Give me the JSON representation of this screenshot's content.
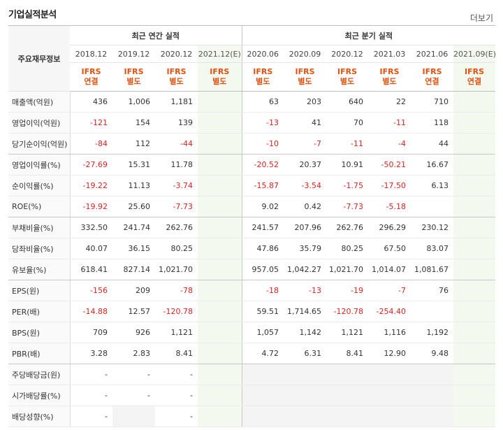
{
  "title": "기업실적분석",
  "more_label": "더보기",
  "header": {
    "label_col": "주요재무정보",
    "annual_title": "최근 연간 실적",
    "quarter_title": "최근 분기 실적",
    "periods": [
      "2018.12",
      "2019.12",
      "2020.12",
      "2021.12(E)",
      "2020.06",
      "2020.09",
      "2020.12",
      "2021.03",
      "2021.06",
      "2021.09(E)"
    ],
    "ifrs_line1": [
      "IFRS",
      "IFRS",
      "IFRS",
      "IFRS",
      "IFRS",
      "IFRS",
      "IFRS",
      "IFRS",
      "IFRS",
      "IFRS"
    ],
    "ifrs_line2": [
      "연결",
      "별도",
      "별도",
      "별도",
      "별도",
      "별도",
      "별도",
      "별도",
      "연결",
      "연결"
    ]
  },
  "rows": [
    {
      "label": "매출액(억원)",
      "values": [
        "436",
        "1,006",
        "1,181",
        "",
        "63",
        "203",
        "640",
        "22",
        "710",
        ""
      ]
    },
    {
      "label": "영업이익(억원)",
      "values": [
        "-121",
        "154",
        "139",
        "",
        "-13",
        "41",
        "70",
        "-11",
        "118",
        ""
      ]
    },
    {
      "label": "당기순이익(억원)",
      "values": [
        "-84",
        "112",
        "-44",
        "",
        "-10",
        "-7",
        "-11",
        "-4",
        "44",
        ""
      ]
    },
    {
      "label": "영업이익률(%)",
      "values": [
        "-27.69",
        "15.31",
        "11.78",
        "",
        "-20.52",
        "20.37",
        "10.91",
        "-50.21",
        "16.67",
        ""
      ]
    },
    {
      "label": "순이익률(%)",
      "values": [
        "-19.22",
        "11.13",
        "-3.74",
        "",
        "-15.87",
        "-3.54",
        "-1.75",
        "-17.50",
        "6.13",
        ""
      ]
    },
    {
      "label": "ROE(%)",
      "values": [
        "-19.92",
        "25.60",
        "-7.73",
        "",
        "9.02",
        "0.42",
        "-7.73",
        "-5.18",
        "",
        ""
      ]
    },
    {
      "label": "부채비율(%)",
      "values": [
        "332.50",
        "241.74",
        "262.76",
        "",
        "241.57",
        "207.96",
        "262.76",
        "296.29",
        "230.12",
        ""
      ]
    },
    {
      "label": "당좌비율(%)",
      "values": [
        "40.07",
        "36.15",
        "80.25",
        "",
        "47.86",
        "35.79",
        "80.25",
        "67.50",
        "83.07",
        ""
      ]
    },
    {
      "label": "유보율(%)",
      "values": [
        "618.41",
        "827.14",
        "1,021.70",
        "",
        "957.05",
        "1,042.27",
        "1,021.70",
        "1,014.07",
        "1,081.67",
        ""
      ]
    },
    {
      "label": "EPS(원)",
      "values": [
        "-156",
        "209",
        "-78",
        "",
        "-18",
        "-13",
        "-19",
        "-7",
        "76",
        ""
      ]
    },
    {
      "label": "PER(배)",
      "values": [
        "-14.88",
        "12.57",
        "-120.78",
        "",
        "59.51",
        "1,714.65",
        "-120.78",
        "-254.40",
        "",
        ""
      ]
    },
    {
      "label": "BPS(원)",
      "values": [
        "709",
        "926",
        "1,121",
        "",
        "1,057",
        "1,142",
        "1,121",
        "1,116",
        "1,192",
        ""
      ]
    },
    {
      "label": "PBR(배)",
      "values": [
        "3.28",
        "2.83",
        "8.41",
        "",
        "4.72",
        "6.31",
        "8.41",
        "12.90",
        "9.48",
        ""
      ]
    },
    {
      "label": "주당배당금(원)",
      "values": [
        "-",
        "-",
        "-",
        "",
        "",
        "",
        "",
        "",
        "",
        ""
      ]
    },
    {
      "label": "시가배당률(%)",
      "values": [
        "-",
        "-",
        "-",
        "",
        "",
        "",
        "",
        "",
        "",
        ""
      ]
    },
    {
      "label": "배당성향(%)",
      "values": [
        "-",
        "",
        "-",
        "",
        "",
        "",
        "",
        "",
        "",
        ""
      ]
    }
  ],
  "colors": {
    "negative": "#e0201e",
    "ifrs": "#e0520f",
    "estimate_bg": "#f4f9f0"
  }
}
